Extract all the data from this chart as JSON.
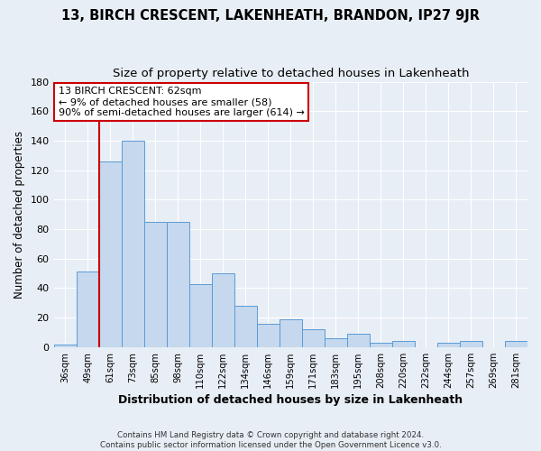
{
  "title": "13, BIRCH CRESCENT, LAKENHEATH, BRANDON, IP27 9JR",
  "subtitle": "Size of property relative to detached houses in Lakenheath",
  "xlabel": "Distribution of detached houses by size in Lakenheath",
  "ylabel": "Number of detached properties",
  "bar_labels": [
    "36sqm",
    "49sqm",
    "61sqm",
    "73sqm",
    "85sqm",
    "98sqm",
    "110sqm",
    "122sqm",
    "134sqm",
    "146sqm",
    "159sqm",
    "171sqm",
    "183sqm",
    "195sqm",
    "208sqm",
    "220sqm",
    "232sqm",
    "244sqm",
    "257sqm",
    "269sqm",
    "281sqm"
  ],
  "bar_values": [
    2,
    51,
    126,
    140,
    85,
    85,
    43,
    50,
    28,
    16,
    19,
    12,
    6,
    9,
    3,
    4,
    0,
    3,
    4,
    0,
    4
  ],
  "bar_color": "#c5d8ee",
  "bar_edge_color": "#5b9bd5",
  "vline_color": "#cc0000",
  "ylim": [
    0,
    180
  ],
  "yticks": [
    0,
    20,
    40,
    60,
    80,
    100,
    120,
    140,
    160,
    180
  ],
  "annotation_title": "13 BIRCH CRESCENT: 62sqm",
  "annotation_line1": "← 9% of detached houses are smaller (58)",
  "annotation_line2": "90% of semi-detached houses are larger (614) →",
  "annotation_box_color": "#cc0000",
  "footer_line1": "Contains HM Land Registry data © Crown copyright and database right 2024.",
  "footer_line2": "Contains public sector information licensed under the Open Government Licence v3.0.",
  "bg_color": "#e8eef5",
  "grid_color": "#ffffff",
  "title_fontsize": 10.5,
  "subtitle_fontsize": 9.5
}
